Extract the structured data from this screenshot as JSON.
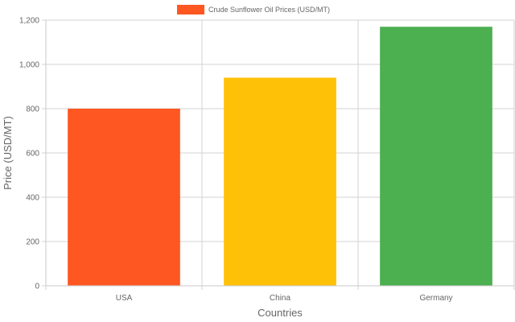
{
  "chart_data": {
    "type": "bar",
    "categories": [
      "USA",
      "China",
      "Germany"
    ],
    "series": [
      {
        "name": "Crude Sunflower Oil Prices (USD/MT)",
        "values": [
          800,
          940,
          1170
        ],
        "colors": [
          "#FF5722",
          "#FFC107",
          "#4CAF50"
        ]
      }
    ],
    "xlabel": "Countries",
    "ylabel": "Price (USD/MT)",
    "ylim": [
      0,
      1200
    ],
    "yticks": [
      "0",
      "200",
      "400",
      "600",
      "800",
      "1,000",
      "1,200"
    ],
    "grid": true,
    "legend": "top-center"
  }
}
